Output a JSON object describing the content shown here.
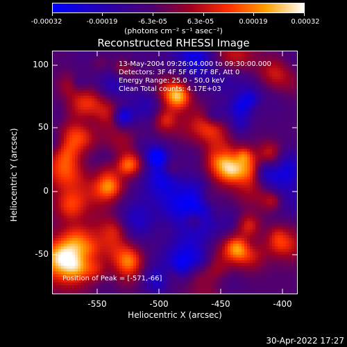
{
  "colorbar": {
    "labels": [
      "-0.00032",
      "-0.00019",
      "-6.3e-05",
      "6.3e-05",
      "0.00019",
      "0.00032"
    ],
    "units": "(photons cm⁻² s⁻¹ asec⁻²)"
  },
  "plot": {
    "title": "Reconstructed RHESSI Image",
    "info_lines": [
      "13-May-2004 09:26:04.000 to 09:30:00.000",
      "Detectors: 3F 4F 5F 6F 7F 8F, Att 0",
      "Energy Range: 25.0 - 50.0 keV",
      "Clean     Total counts: 4.17E+03"
    ],
    "peak_label": "Position of Peak = [-571,-66]",
    "x_ticks": [
      "-550",
      "-500",
      "-450",
      "-400"
    ],
    "y_ticks": [
      "100",
      "50",
      "0",
      "-50"
    ],
    "xlabel": "Heliocentric X (arcsec)",
    "ylabel": "Heliocentric Y (arcsec)"
  },
  "footer": {
    "datestamp": "30-Apr-2022 17:27"
  }
}
